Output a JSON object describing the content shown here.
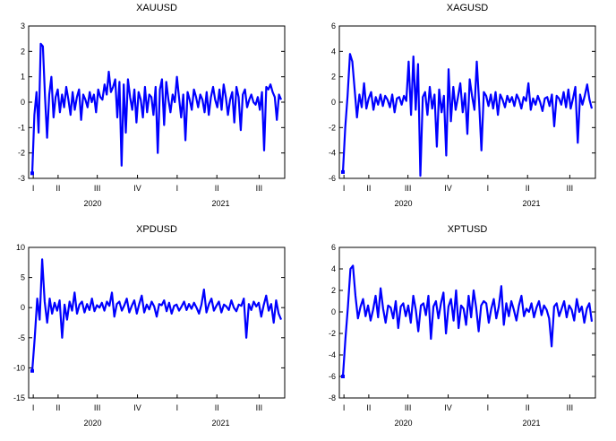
{
  "chart_data": [
    {
      "type": "line",
      "title": "XAUUSD",
      "ylim": [
        -3,
        3
      ],
      "yticks": [
        "3",
        "2",
        "1",
        "0",
        "-1",
        "-2",
        "-3"
      ],
      "xticks_quarter": [
        "I",
        "II",
        "III",
        "IV",
        "I",
        "II",
        "III"
      ],
      "xticks_year": [
        "2020",
        "2021"
      ],
      "color": "#0000ff",
      "series": [
        {
          "values": [
            -2.8,
            -0.5,
            0.4,
            -1.2,
            2.3,
            2.2,
            0.2,
            -1.4,
            0.3,
            1.0,
            -0.6,
            0.2,
            0.5,
            -0.4,
            0.3,
            -0.2,
            0.6,
            0.1,
            -0.5,
            0.4,
            -0.3,
            0.2,
            0.5,
            -0.7,
            0.3,
            0.1,
            -0.2,
            0.4,
            0.0,
            0.3,
            -0.4,
            0.5,
            0.2,
            0.1,
            0.7,
            0.3,
            1.2,
            0.4,
            0.6,
            0.9,
            -0.6,
            0.8,
            -2.5,
            0.7,
            -1.2,
            0.9,
            0.2,
            -0.3,
            0.5,
            -0.8,
            0.4,
            0.1,
            -0.6,
            0.6,
            -0.4,
            0.3,
            0.2,
            -0.5,
            0.6,
            -2.0,
            0.5,
            0.9,
            -0.9,
            0.8,
            0.1,
            -0.4,
            0.3,
            0.0,
            1.0,
            0.2,
            -0.6,
            0.3,
            -1.5,
            0.4,
            0.1,
            -0.3,
            0.5,
            0.2,
            -0.2,
            0.3,
            0.1,
            -0.4,
            0.4,
            -0.5,
            0.2,
            0.6,
            0.1,
            -0.2,
            0.5,
            -0.3,
            0.7,
            0.2,
            -0.5,
            0.1,
            0.4,
            -0.8,
            0.6,
            0.2,
            -1.1,
            0.3,
            0.5,
            -0.2,
            0.1,
            0.3,
            0.0,
            -0.1,
            0.2,
            -0.3,
            0.4,
            -1.9,
            0.6,
            0.5,
            0.7,
            0.4,
            0.2,
            -0.7,
            0.3,
            0.1
          ]
        }
      ]
    },
    {
      "type": "line",
      "title": "XAGUSD",
      "ylim": [
        -6,
        6
      ],
      "yticks": [
        "6",
        "4",
        "2",
        "0",
        "-2",
        "-4",
        "-6"
      ],
      "xticks_quarter": [
        "I",
        "II",
        "III",
        "IV",
        "I",
        "II",
        "III"
      ],
      "xticks_year": [
        "2020",
        "2021"
      ],
      "color": "#0000ff",
      "series": [
        {
          "values": [
            -5.5,
            -2.0,
            0.5,
            3.8,
            3.2,
            1.0,
            -1.2,
            0.6,
            -0.4,
            1.5,
            -0.5,
            0.3,
            0.8,
            -0.6,
            0.4,
            -0.2,
            0.6,
            -0.3,
            0.5,
            0.2,
            -0.4,
            0.6,
            -0.8,
            0.3,
            0.4,
            -0.2,
            0.5,
            0.1,
            3.2,
            -1.0,
            3.6,
            -0.6,
            3.0,
            -5.8,
            0.4,
            0.8,
            -1.0,
            1.2,
            -0.5,
            0.6,
            -3.5,
            1.0,
            -0.8,
            0.5,
            -4.2,
            2.6,
            -1.5,
            1.2,
            -0.6,
            0.4,
            1.5,
            -0.8,
            0.7,
            -2.5,
            1.8,
            0.5,
            -0.6,
            3.2,
            0.0,
            -3.8,
            0.8,
            0.5,
            -0.3,
            0.6,
            -0.5,
            0.8,
            -1.0,
            0.6,
            0.2,
            -0.4,
            0.5,
            0.0,
            0.4,
            -0.3,
            0.6,
            0.2,
            -0.5,
            0.4,
            0.1,
            1.5,
            -0.6,
            0.3,
            -0.2,
            0.5,
            0.0,
            -0.7,
            0.3,
            0.4,
            -0.3,
            0.6,
            -1.9,
            0.5,
            0.3,
            -0.2,
            0.8,
            -0.4,
            1.0,
            -0.5,
            0.3,
            1.2,
            -3.2,
            0.6,
            -0.2,
            0.5,
            1.4,
            0.2,
            -0.5
          ]
        }
      ]
    },
    {
      "type": "line",
      "title": "XPDUSD",
      "ylim": [
        -15,
        10
      ],
      "yticks": [
        "10",
        "5",
        "0",
        "-5",
        "-10",
        "-15"
      ],
      "xticks_quarter": [
        "I",
        "II",
        "III",
        "IV",
        "I",
        "II",
        "III"
      ],
      "xticks_year": [
        "2020",
        "2021"
      ],
      "color": "#0000ff",
      "series": [
        {
          "values": [
            -10.5,
            -5.0,
            1.5,
            -2.0,
            8.0,
            1.0,
            -2.5,
            1.5,
            -1.0,
            0.8,
            -0.5,
            1.2,
            -5.0,
            0.5,
            -2.0,
            1.0,
            -0.5,
            2.5,
            -1.0,
            0.5,
            1.0,
            -0.8,
            0.6,
            -0.4,
            1.5,
            -0.6,
            0.4,
            0.0,
            0.8,
            -0.5,
            1.0,
            0.3,
            2.5,
            -1.5,
            0.6,
            1.0,
            -0.5,
            0.4,
            1.5,
            -0.8,
            0.3,
            1.2,
            -1.0,
            0.6,
            2.0,
            -0.8,
            0.5,
            -0.3,
            1.0,
            0.2,
            -1.5,
            0.6,
            0.4,
            1.2,
            -0.6,
            0.8,
            -1.0,
            0.3,
            0.5,
            -0.5,
            0.2,
            1.0,
            -0.4,
            0.6,
            -0.2,
            0.8,
            0.0,
            -1.0,
            0.5,
            3.0,
            -0.8,
            0.6,
            1.5,
            -0.5,
            0.3,
            1.0,
            -0.8,
            0.5,
            0.2,
            -0.4,
            1.2,
            0.0,
            -0.6,
            0.5,
            0.3,
            1.5,
            -5.0,
            0.6,
            -0.4,
            1.0,
            0.2,
            0.8,
            -1.5,
            0.4,
            2.0,
            -0.5,
            0.6,
            -2.5,
            1.2,
            -1.0,
            -2.0
          ]
        }
      ]
    },
    {
      "type": "line",
      "title": "XPTUSD",
      "ylim": [
        -8,
        6
      ],
      "yticks": [
        "6",
        "4",
        "2",
        "0",
        "-2",
        "-4",
        "-6",
        "-8"
      ],
      "xticks_quarter": [
        "I",
        "II",
        "III",
        "IV",
        "I",
        "II",
        "III"
      ],
      "xticks_year": [
        "2020",
        "2021"
      ],
      "color": "#0000ff",
      "series": [
        {
          "values": [
            -6.0,
            -2.5,
            0.5,
            4.0,
            4.3,
            1.5,
            -0.6,
            0.5,
            1.2,
            -0.4,
            0.6,
            -0.8,
            0.2,
            1.5,
            -0.5,
            2.2,
            0.3,
            -1.0,
            0.6,
            0.4,
            -0.6,
            1.0,
            -1.5,
            0.5,
            0.8,
            -0.4,
            0.6,
            -1.0,
            1.5,
            0.2,
            -1.8,
            0.6,
            0.8,
            -0.3,
            1.5,
            -2.5,
            0.5,
            1.0,
            -0.6,
            0.8,
            1.8,
            -2.0,
            0.5,
            1.2,
            -0.8,
            2.0,
            -1.5,
            0.6,
            0.3,
            -1.2,
            1.5,
            -0.5,
            2.0,
            0.4,
            -1.8,
            0.6,
            1.0,
            0.8,
            -1.0,
            0.3,
            1.2,
            -0.6,
            0.5,
            2.4,
            -1.2,
            0.8,
            -0.4,
            1.0,
            0.2,
            -0.8,
            0.6,
            1.5,
            -0.4,
            0.3,
            0.0,
            0.8,
            -0.5,
            0.4,
            1.0,
            -0.3,
            0.6,
            0.2,
            -0.6,
            -3.2,
            0.5,
            0.8,
            -0.4,
            0.3,
            1.0,
            -0.5,
            0.6,
            0.2,
            -0.8,
            1.2,
            0.0,
            0.5,
            -1.0,
            0.3,
            0.8,
            -0.9
          ]
        }
      ]
    }
  ]
}
